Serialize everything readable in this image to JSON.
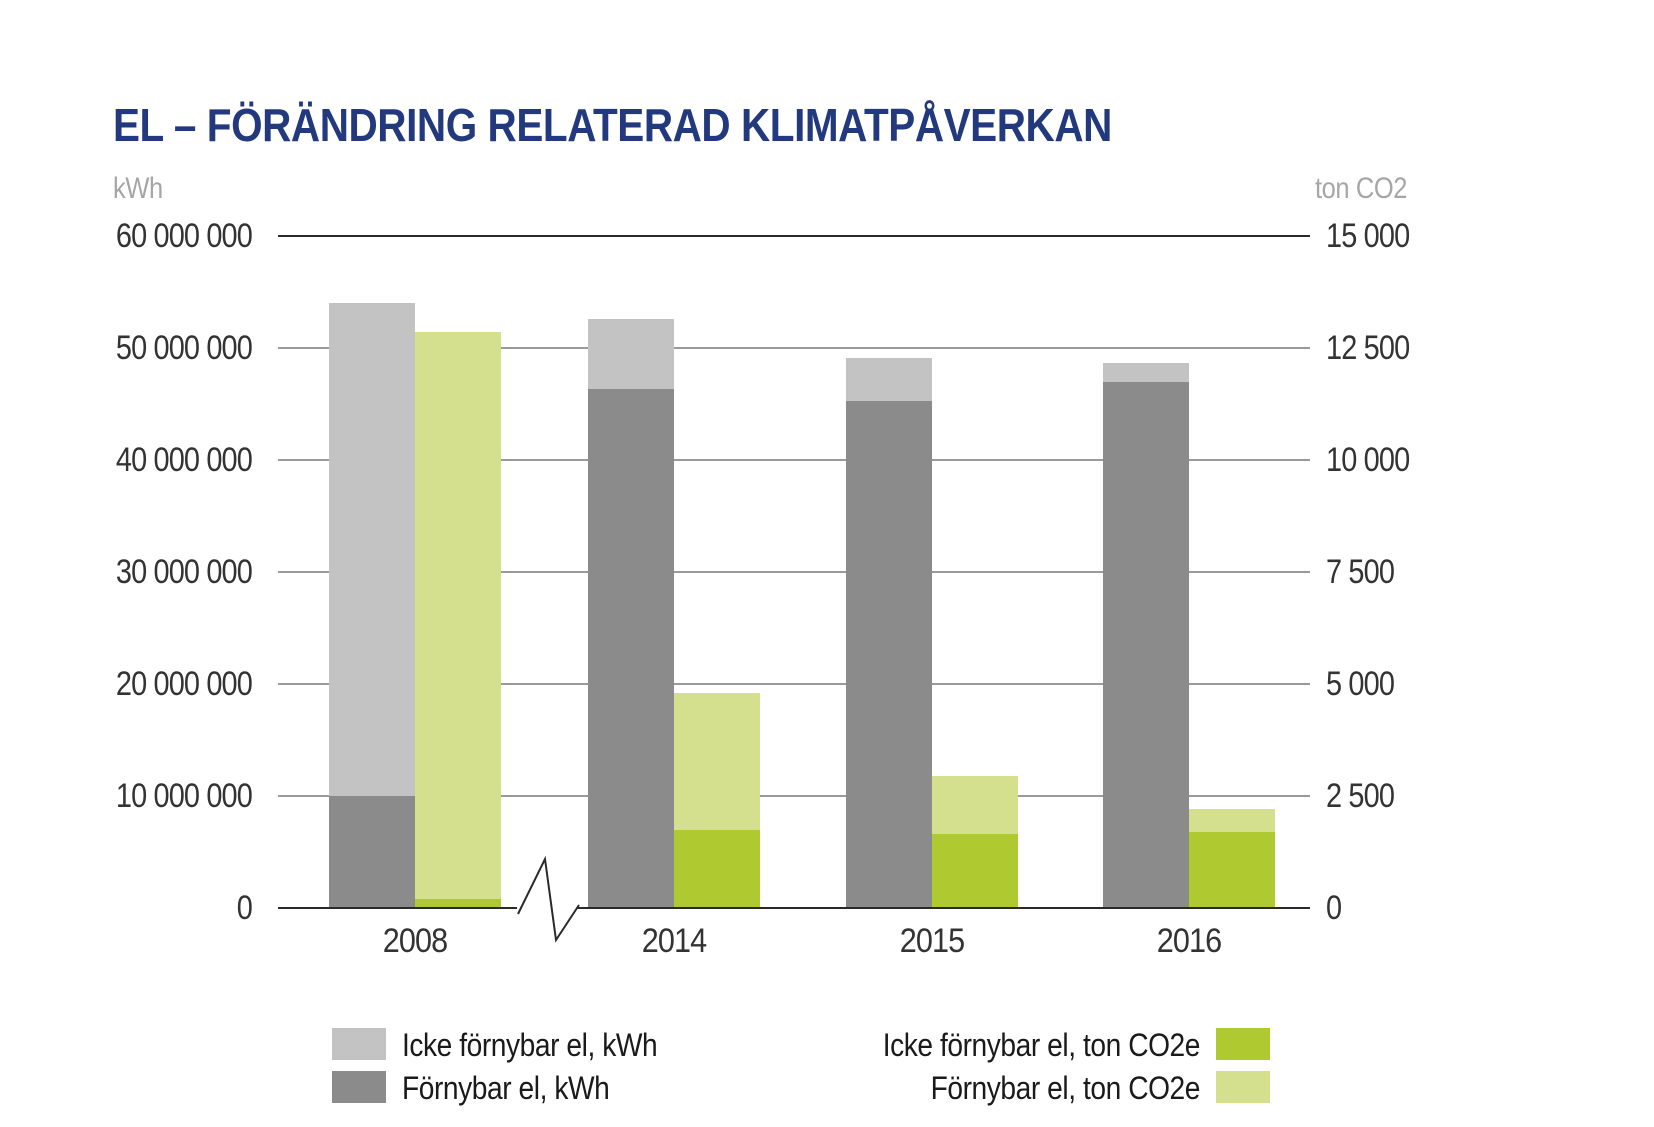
{
  "title": "EL – FÖRÄNDRING RELATERAD KLIMATPÅVERKAN",
  "axes": {
    "left_unit": "kWh",
    "right_unit": "ton CO2"
  },
  "colors": {
    "title": "#23397d",
    "light_gray": "#c3c3c3",
    "dark_gray": "#8b8b8b",
    "dark_green": "#afc930",
    "light_green": "#d5e08e",
    "gridline": "#9a9a9a",
    "axis_line": "#2a2a2a",
    "tick_text": "#333333",
    "unit_text": "#a6a6a6",
    "legend_text": "#1a1a1a"
  },
  "legend": {
    "left": [
      {
        "label": "Icke förnybar el, kWh",
        "color_key": "light_gray"
      },
      {
        "label": "Förnybar el, kWh",
        "color_key": "dark_gray"
      }
    ],
    "right": [
      {
        "label": "Icke förnybar el, ton CO2e",
        "color_key": "dark_green"
      },
      {
        "label": "Förnybar el, ton CO2e",
        "color_key": "light_green"
      }
    ]
  },
  "chart_data": {
    "type": "bar",
    "subtype": "grouped-stacked-dual-axis",
    "title": "EL – FÖRÄNDRING RELATERAD KLIMATPÅVERKAN",
    "categories": [
      "2008",
      "2014",
      "2015",
      "2016"
    ],
    "axis_break_between": [
      "2008",
      "2014"
    ],
    "grid": true,
    "legend_position": "bottom",
    "left_axis": {
      "unit": "kWh",
      "min": 0,
      "max": 60000000,
      "tick_step": 10000000,
      "tick_labels": [
        "0",
        "10 000 000",
        "20 000 000",
        "30 000 000",
        "40 000 000",
        "50 000 000",
        "60 000 000"
      ]
    },
    "right_axis": {
      "unit": "ton CO2",
      "min": 0,
      "max": 15000,
      "tick_step": 2500,
      "tick_labels": [
        "0",
        "2 500",
        "5 000",
        "7 500",
        "10 000",
        "12 500",
        "15 000"
      ]
    },
    "series": [
      {
        "name": "Förnybar el, kWh",
        "axis": "left",
        "stack": "kwh",
        "color_key": "dark_gray",
        "values": [
          10000000,
          46300000,
          45300000,
          47000000
        ]
      },
      {
        "name": "Icke förnybar el, kWh",
        "axis": "left",
        "stack": "kwh",
        "color_key": "light_gray",
        "values": [
          44000000,
          6300000,
          3800000,
          1700000
        ]
      },
      {
        "name": "Icke förnybar el, ton CO2e",
        "axis": "right",
        "stack": "co2",
        "color_key": "dark_green",
        "values": [
          200,
          1750,
          1650,
          1700
        ]
      },
      {
        "name": "Förnybar el, ton CO2e",
        "axis": "right",
        "stack": "co2",
        "color_key": "light_green",
        "values": [
          12650,
          3050,
          1300,
          500
        ]
      }
    ]
  }
}
